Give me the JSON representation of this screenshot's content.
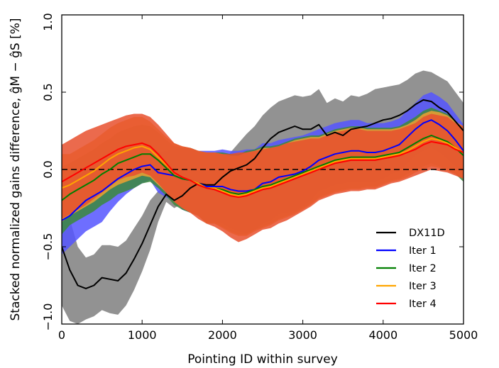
{
  "chart_data": {
    "type": "line",
    "title": "",
    "xlabel": "Pointing ID within survey",
    "ylabel": "Stacked normalized gains difference, ĝM − ĝS [%]",
    "xlim": [
      0,
      5000
    ],
    "ylim": [
      -1.0,
      1.0
    ],
    "xticks": [
      0,
      1000,
      2000,
      3000,
      4000,
      5000
    ],
    "xtick_labels": [
      "0",
      "1000",
      "2000",
      "3000",
      "4000",
      "5000"
    ],
    "yticks": [
      -1.0,
      -0.5,
      0.0,
      0.5,
      1.0
    ],
    "ytick_labels": [
      "−1.0",
      "−0.5",
      "0.0",
      "0.5",
      "1.0"
    ],
    "grid": false,
    "legend_position": "lower-right",
    "reference_line": {
      "y": 0.0,
      "style": "dashed",
      "color": "#000000"
    },
    "x": [
      0,
      100,
      200,
      300,
      400,
      500,
      600,
      700,
      800,
      900,
      1000,
      1100,
      1200,
      1300,
      1400,
      1500,
      1600,
      1700,
      1800,
      1900,
      2000,
      2100,
      2200,
      2300,
      2400,
      2500,
      2600,
      2700,
      2800,
      2900,
      3000,
      3100,
      3200,
      3300,
      3400,
      3500,
      3600,
      3700,
      3800,
      3900,
      4000,
      4100,
      4200,
      4300,
      4400,
      4500,
      4600,
      4700,
      4800,
      4900,
      5000
    ],
    "series": [
      {
        "name": "DX11D",
        "line_color": "#000000",
        "band_color": "#7f7f7f",
        "values": [
          -0.5,
          -0.65,
          -0.75,
          -0.77,
          -0.75,
          -0.7,
          -0.71,
          -0.72,
          -0.67,
          -0.58,
          -0.48,
          -0.36,
          -0.24,
          -0.16,
          -0.2,
          -0.17,
          -0.12,
          -0.09,
          -0.1,
          -0.1,
          -0.05,
          -0.01,
          0.01,
          0.03,
          0.07,
          0.14,
          0.2,
          0.24,
          0.26,
          0.28,
          0.26,
          0.26,
          0.29,
          0.22,
          0.24,
          0.22,
          0.26,
          0.27,
          0.28,
          0.3,
          0.32,
          0.33,
          0.35,
          0.38,
          0.42,
          0.45,
          0.44,
          0.4,
          0.37,
          0.31,
          0.25
        ],
        "band_half_width": [
          0.38,
          0.33,
          0.25,
          0.2,
          0.2,
          0.21,
          0.22,
          0.22,
          0.21,
          0.2,
          0.18,
          0.16,
          0.1,
          0.05,
          0.05,
          0.05,
          0.05,
          0.05,
          0.05,
          0.06,
          0.08,
          0.12,
          0.16,
          0.2,
          0.21,
          0.21,
          0.2,
          0.2,
          0.2,
          0.2,
          0.21,
          0.22,
          0.23,
          0.21,
          0.22,
          0.22,
          0.22,
          0.2,
          0.21,
          0.22,
          0.21,
          0.21,
          0.2,
          0.2,
          0.2,
          0.19,
          0.19,
          0.2,
          0.2,
          0.19,
          0.18
        ]
      },
      {
        "name": "Iter 1",
        "line_color": "#0000ff",
        "band_color": "#5555ff",
        "values": [
          -0.33,
          -0.3,
          -0.25,
          -0.2,
          -0.17,
          -0.14,
          -0.1,
          -0.06,
          -0.03,
          0.0,
          0.02,
          0.03,
          -0.02,
          -0.03,
          -0.04,
          -0.06,
          -0.07,
          -0.09,
          -0.11,
          -0.11,
          -0.11,
          -0.13,
          -0.14,
          -0.14,
          -0.13,
          -0.09,
          -0.08,
          -0.05,
          -0.04,
          -0.03,
          -0.01,
          0.02,
          0.06,
          0.08,
          0.1,
          0.11,
          0.12,
          0.12,
          0.11,
          0.11,
          0.12,
          0.14,
          0.16,
          0.21,
          0.26,
          0.3,
          0.32,
          0.29,
          0.25,
          0.19,
          0.12
        ],
        "band_half_width": [
          0.22,
          0.2,
          0.2,
          0.2,
          0.2,
          0.2,
          0.17,
          0.15,
          0.13,
          0.12,
          0.11,
          0.1,
          0.13,
          0.15,
          0.17,
          0.2,
          0.21,
          0.21,
          0.23,
          0.23,
          0.24,
          0.25,
          0.26,
          0.27,
          0.26,
          0.26,
          0.25,
          0.24,
          0.24,
          0.24,
          0.23,
          0.22,
          0.2,
          0.2,
          0.2,
          0.2,
          0.2,
          0.2,
          0.19,
          0.19,
          0.18,
          0.17,
          0.17,
          0.17,
          0.17,
          0.18,
          0.18,
          0.18,
          0.18,
          0.17,
          0.17
        ]
      },
      {
        "name": "Iter 2",
        "line_color": "#007f00",
        "band_color": "#3b8a3b",
        "values": [
          -0.2,
          -0.16,
          -0.13,
          -0.1,
          -0.07,
          -0.03,
          0.0,
          0.04,
          0.06,
          0.08,
          0.1,
          0.1,
          0.06,
          0.01,
          -0.04,
          -0.06,
          -0.07,
          -0.09,
          -0.12,
          -0.12,
          -0.13,
          -0.15,
          -0.16,
          -0.15,
          -0.13,
          -0.11,
          -0.1,
          -0.08,
          -0.06,
          -0.04,
          -0.02,
          0.0,
          0.02,
          0.04,
          0.06,
          0.07,
          0.08,
          0.08,
          0.08,
          0.08,
          0.09,
          0.1,
          0.11,
          0.14,
          0.17,
          0.2,
          0.22,
          0.2,
          0.18,
          0.14,
          0.09
        ],
        "band_half_width": [
          0.22,
          0.2,
          0.2,
          0.2,
          0.2,
          0.2,
          0.2,
          0.2,
          0.2,
          0.2,
          0.19,
          0.18,
          0.18,
          0.18,
          0.19,
          0.2,
          0.21,
          0.21,
          0.23,
          0.23,
          0.24,
          0.25,
          0.26,
          0.27,
          0.26,
          0.26,
          0.25,
          0.24,
          0.24,
          0.24,
          0.23,
          0.22,
          0.2,
          0.2,
          0.2,
          0.2,
          0.2,
          0.2,
          0.19,
          0.19,
          0.18,
          0.17,
          0.17,
          0.17,
          0.17,
          0.18,
          0.18,
          0.18,
          0.18,
          0.17,
          0.17
        ]
      },
      {
        "name": "Iter 3",
        "line_color": "#ffa500",
        "band_color": "#f0a030",
        "values": [
          -0.12,
          -0.1,
          -0.07,
          -0.04,
          -0.01,
          0.03,
          0.07,
          0.1,
          0.12,
          0.14,
          0.15,
          0.13,
          0.08,
          0.03,
          -0.02,
          -0.05,
          -0.07,
          -0.09,
          -0.12,
          -0.12,
          -0.14,
          -0.16,
          -0.17,
          -0.16,
          -0.14,
          -0.12,
          -0.11,
          -0.09,
          -0.07,
          -0.05,
          -0.03,
          -0.01,
          0.01,
          0.03,
          0.05,
          0.06,
          0.07,
          0.07,
          0.07,
          0.07,
          0.08,
          0.09,
          0.1,
          0.12,
          0.15,
          0.18,
          0.2,
          0.19,
          0.17,
          0.14,
          0.11
        ],
        "band_half_width": [
          0.22,
          0.2,
          0.2,
          0.2,
          0.2,
          0.2,
          0.2,
          0.2,
          0.2,
          0.2,
          0.19,
          0.18,
          0.18,
          0.18,
          0.19,
          0.2,
          0.21,
          0.21,
          0.23,
          0.23,
          0.24,
          0.25,
          0.26,
          0.27,
          0.26,
          0.26,
          0.25,
          0.24,
          0.24,
          0.24,
          0.23,
          0.22,
          0.2,
          0.2,
          0.2,
          0.2,
          0.2,
          0.2,
          0.19,
          0.19,
          0.18,
          0.17,
          0.17,
          0.17,
          0.17,
          0.18,
          0.18,
          0.18,
          0.18,
          0.17,
          0.17
        ]
      },
      {
        "name": "Iter 4",
        "line_color": "#ff0000",
        "band_color": "#e8502e",
        "values": [
          -0.08,
          -0.05,
          -0.02,
          0.01,
          0.04,
          0.07,
          0.1,
          0.13,
          0.15,
          0.16,
          0.17,
          0.15,
          0.1,
          0.04,
          -0.02,
          -0.05,
          -0.07,
          -0.1,
          -0.12,
          -0.13,
          -0.15,
          -0.17,
          -0.18,
          -0.17,
          -0.15,
          -0.13,
          -0.12,
          -0.1,
          -0.08,
          -0.06,
          -0.04,
          -0.02,
          0.0,
          0.02,
          0.04,
          0.05,
          0.06,
          0.06,
          0.06,
          0.06,
          0.07,
          0.08,
          0.09,
          0.11,
          0.13,
          0.16,
          0.18,
          0.17,
          0.16,
          0.13,
          0.11
        ],
        "band_half_width": [
          0.24,
          0.24,
          0.24,
          0.24,
          0.23,
          0.22,
          0.21,
          0.2,
          0.2,
          0.2,
          0.19,
          0.19,
          0.19,
          0.19,
          0.19,
          0.2,
          0.21,
          0.22,
          0.23,
          0.24,
          0.25,
          0.27,
          0.29,
          0.28,
          0.27,
          0.26,
          0.26,
          0.25,
          0.25,
          0.24,
          0.23,
          0.22,
          0.2,
          0.2,
          0.2,
          0.2,
          0.2,
          0.2,
          0.19,
          0.19,
          0.18,
          0.17,
          0.17,
          0.17,
          0.17,
          0.18,
          0.18,
          0.18,
          0.18,
          0.17,
          0.17
        ]
      }
    ]
  }
}
